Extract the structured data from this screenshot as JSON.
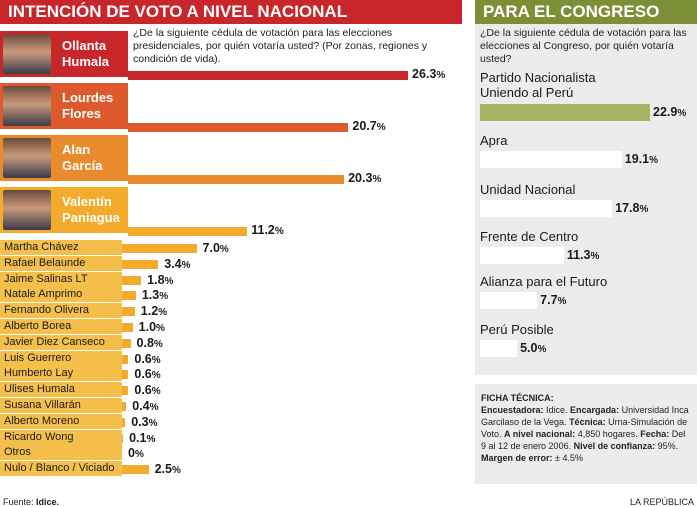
{
  "left_title": "INTENCIÓN DE VOTO A NIVEL NACIONAL",
  "right_title": "PARA EL CONGRESO",
  "left_question": "¿De la siguiente cédula de votación para las elecciones presidenciales, por quién votaría usted? (Por zonas, regiones y condición de vida).",
  "right_question": "¿De la siguiente cédula de votación para las elecciones al Congreso, por quién votaría usted?",
  "percent_sign": "%",
  "chart_data": [
    {
      "type": "bar",
      "title": "INTENCIÓN DE VOTO A NIVEL NACIONAL",
      "categories": [
        "Ollanta Humala",
        "Lourdes Flores",
        "Alan García",
        "Valentín Paniagua",
        "Martha Chávez",
        "Rafael Belaunde",
        "Jaime Salinas LT",
        "Natale Amprimo",
        "Fernando Olivera",
        "Alberto Borea",
        "Javier Diez Canseco",
        "Luis Guerrero",
        "Humberto Lay",
        "Ulises Humala",
        "Susana Villarán",
        "Alberto Moreno",
        "Ricardo Wong",
        "Otros",
        "Nulo / Blanco / Viciado"
      ],
      "featured": [
        {
          "line1": "Ollanta",
          "line2": "Humala",
          "value": 26.3,
          "label": "26.3",
          "color": "#c8262a"
        },
        {
          "line1": "Lourdes",
          "line2": "Flores",
          "value": 20.7,
          "label": "20.7",
          "color": "#de5a2c"
        },
        {
          "line1": "Alan",
          "line2": "García",
          "value": 20.3,
          "label": "20.3",
          "color": "#e98a2d"
        },
        {
          "line1": "Valentín",
          "line2": "Paniagua",
          "value": 11.2,
          "label": "11.2",
          "color": "#f2ab2a"
        }
      ],
      "others": [
        {
          "name": "Martha Chávez",
          "value": 7.0,
          "label": "7.0"
        },
        {
          "name": "Rafael Belaunde",
          "value": 3.4,
          "label": "3.4"
        },
        {
          "name": "Jaime Salinas LT",
          "value": 1.8,
          "label": "1.8"
        },
        {
          "name": "Natale Amprimo",
          "value": 1.3,
          "label": "1.3"
        },
        {
          "name": "Fernando Olivera",
          "value": 1.2,
          "label": "1.2"
        },
        {
          "name": "Alberto Borea",
          "value": 1.0,
          "label": "1.0"
        },
        {
          "name": "Javier Diez Canseco",
          "value": 0.8,
          "label": "0.8"
        },
        {
          "name": "Luis Guerrero",
          "value": 0.6,
          "label": "0.6"
        },
        {
          "name": "Humberto Lay",
          "value": 0.6,
          "label": "0.6"
        },
        {
          "name": "Ulises Humala",
          "value": 0.6,
          "label": "0.6"
        },
        {
          "name": "Susana Villarán",
          "value": 0.4,
          "label": "0.4"
        },
        {
          "name": "Alberto Moreno",
          "value": 0.3,
          "label": "0.3"
        },
        {
          "name": "Ricardo Wong",
          "value": 0.1,
          "label": "0.1"
        },
        {
          "name": "Otros",
          "value": 0,
          "label": "0"
        },
        {
          "name": "Nulo / Blanco / Viciado",
          "value": 2.5,
          "label": "2.5"
        }
      ],
      "others_bar_color": "#f2ab2a"
    },
    {
      "type": "bar",
      "title": "PARA EL CONGRESO",
      "categories": [
        "Partido Nacionalista Uniendo al Perú",
        "Apra",
        "Unidad Nacional",
        "Frente de Centro",
        "Alianza para el Futuro",
        "Perú Posible"
      ],
      "items": [
        {
          "line1": "Partido Nacionalista",
          "line2": "Uniendo al Perú",
          "value": 22.9,
          "label": "22.9",
          "highlight": true
        },
        {
          "line1": "Apra",
          "line2": "",
          "value": 19.1,
          "label": "19.1",
          "highlight": false
        },
        {
          "line1": "Unidad Nacional",
          "line2": "",
          "value": 17.8,
          "label": "17.8",
          "highlight": false
        },
        {
          "line1": "Frente de Centro",
          "line2": "",
          "value": 11.3,
          "label": "11.3",
          "highlight": false
        },
        {
          "line1": "Alianza para el Futuro",
          "line2": "",
          "value": 7.7,
          "label": "7.7",
          "highlight": false
        },
        {
          "line1": "Perú Posible",
          "line2": "",
          "value": 5.0,
          "label": "5.0",
          "highlight": false
        }
      ],
      "highlight_color": "#a5b462",
      "bar_color": "#ffffff"
    }
  ],
  "ficha": {
    "title": "FICHA TÉCNICA:",
    "enc_label": "Encuestadora:",
    "enc_value": " Idice. ",
    "encargada_label": "Encargada:",
    "encargada_value": " Universidad Inca Garcilaso de la Vega. ",
    "tecnica_label": "Técnica:",
    "tecnica_value": " Urna-Simulación de Voto. ",
    "nivel_label": "A nivel nacional:",
    "nivel_value": " 4,850 hogares. ",
    "fecha_label": "Fecha:",
    "fecha_value": " Del 9 al 12 de enero 2006. ",
    "conf_label": "Nivel de confianza:",
    "conf_value": " 95%.",
    "error_label": "Margen de error:",
    "error_value": " ± 4.5%"
  },
  "footer": {
    "source_label": "Fuente: ",
    "source_value": "Idice.",
    "credit": "LA REPÚBLICA"
  }
}
